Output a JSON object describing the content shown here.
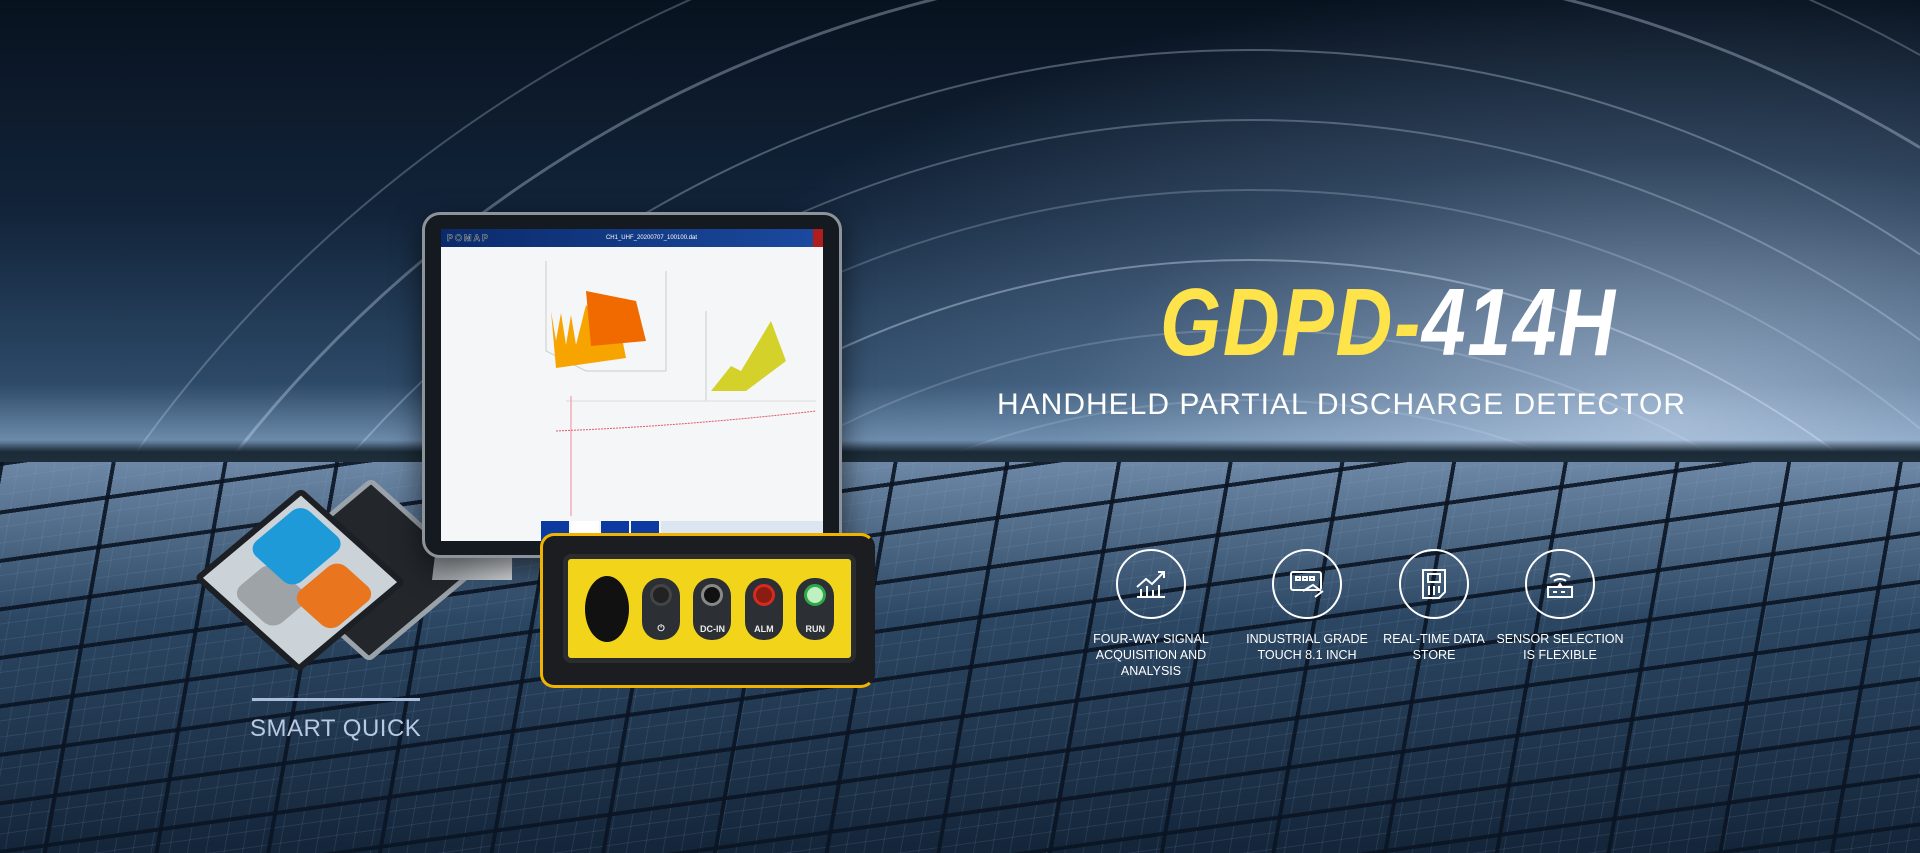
{
  "hero": {
    "title_model_prefix": "GDPD-",
    "title_model_number": "414H",
    "subtitle": "HANDHELD PARTIAL DISCHARGE DETECTOR",
    "accent_color": "#ffe34a"
  },
  "features": [
    {
      "icon": "rising-chart-icon",
      "line1": "FOUR-WAY SIGNAL",
      "line2": "ACQUISITION AND ANALYSIS"
    },
    {
      "icon": "touch-screen-icon",
      "line1": "INDUSTRIAL GRADE",
      "line2": "TOUCH 8.1 INCH"
    },
    {
      "icon": "storage-icon",
      "line1": "REAL-TIME DATA",
      "line2": "STORE"
    },
    {
      "icon": "wireless-sensor-icon",
      "line1": "SENSOR SELECTION",
      "line2": "IS FLEXIBLE"
    }
  ],
  "device": {
    "screen_logo": "POMAP",
    "screen_title": "CH1_UHF_20200707_100100.dat",
    "ports": [
      {
        "label": "⏻",
        "led": "#3a3a3a"
      },
      {
        "label": "DC-IN",
        "led": "#111111"
      },
      {
        "label": "ALM",
        "led": "#d62a1e"
      },
      {
        "label": "RUN",
        "led": "#2fa84a"
      }
    ]
  },
  "badge": {
    "label": "SMART QUICK"
  }
}
